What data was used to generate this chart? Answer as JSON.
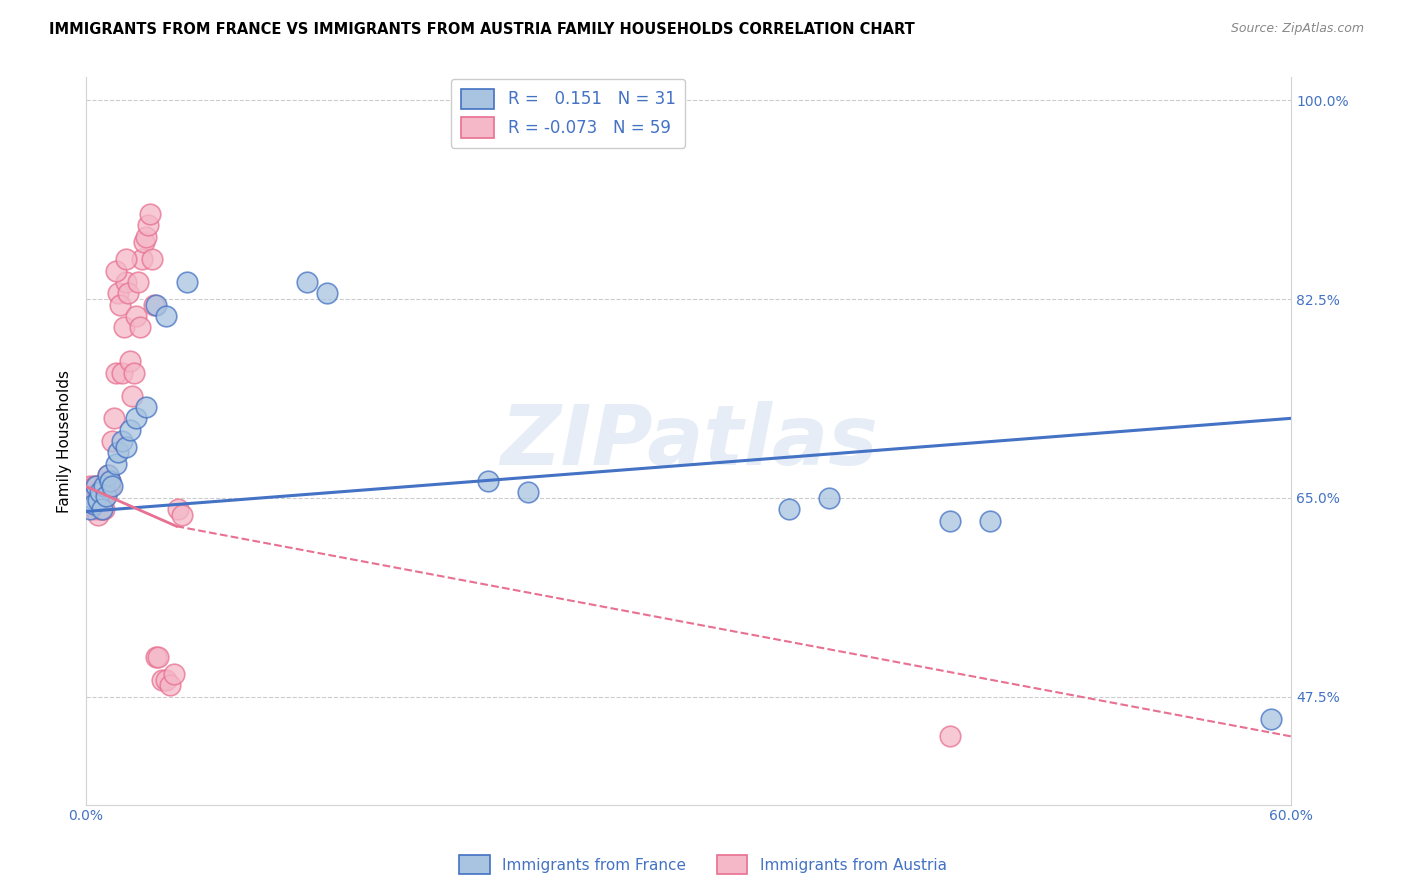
{
  "title": "IMMIGRANTS FROM FRANCE VS IMMIGRANTS FROM AUSTRIA FAMILY HOUSEHOLDS CORRELATION CHART",
  "source": "Source: ZipAtlas.com",
  "ylabel": "Family Households",
  "xlim": [
    0.0,
    0.6
  ],
  "ylim": [
    0.38,
    1.02
  ],
  "xticks": [
    0.0,
    0.1,
    0.2,
    0.3,
    0.4,
    0.5,
    0.6
  ],
  "xticklabels": [
    "0.0%",
    "",
    "",
    "",
    "",
    "",
    "60.0%"
  ],
  "yticks_right": [
    0.475,
    0.65,
    0.825,
    1.0
  ],
  "ytick_right_labels": [
    "47.5%",
    "65.0%",
    "82.5%",
    "100.0%"
  ],
  "france_R": 0.151,
  "france_N": 31,
  "austria_R": -0.073,
  "austria_N": 59,
  "france_color": "#a8c4e0",
  "austria_color": "#f4b8c8",
  "france_line_color": "#4472c4",
  "austria_line_color": "#e87090",
  "watermark": "ZIPatlas",
  "legend_label_france": "Immigrants from France",
  "legend_label_austria": "Immigrants from Austria",
  "france_x": [
    0.002,
    0.003,
    0.004,
    0.005,
    0.006,
    0.007,
    0.008,
    0.009,
    0.01,
    0.011,
    0.012,
    0.013,
    0.015,
    0.016,
    0.018,
    0.02,
    0.022,
    0.025,
    0.03,
    0.035,
    0.04,
    0.05,
    0.11,
    0.12,
    0.2,
    0.22,
    0.35,
    0.37,
    0.43,
    0.45,
    0.59
  ],
  "france_y": [
    0.64,
    0.65,
    0.645,
    0.66,
    0.648,
    0.655,
    0.64,
    0.66,
    0.652,
    0.67,
    0.665,
    0.66,
    0.68,
    0.69,
    0.7,
    0.695,
    0.71,
    0.72,
    0.73,
    0.82,
    0.81,
    0.84,
    0.84,
    0.83,
    0.665,
    0.655,
    0.64,
    0.65,
    0.63,
    0.63,
    0.455
  ],
  "austria_x": [
    0.002,
    0.002,
    0.003,
    0.003,
    0.004,
    0.004,
    0.005,
    0.005,
    0.005,
    0.006,
    0.006,
    0.006,
    0.007,
    0.007,
    0.007,
    0.008,
    0.008,
    0.008,
    0.009,
    0.009,
    0.01,
    0.01,
    0.011,
    0.011,
    0.012,
    0.012,
    0.013,
    0.014,
    0.015,
    0.016,
    0.017,
    0.018,
    0.019,
    0.02,
    0.021,
    0.022,
    0.023,
    0.024,
    0.025,
    0.026,
    0.027,
    0.028,
    0.029,
    0.03,
    0.031,
    0.032,
    0.033,
    0.034,
    0.035,
    0.036,
    0.038,
    0.04,
    0.042,
    0.044,
    0.046,
    0.048,
    0.015,
    0.02,
    0.43
  ],
  "austria_y": [
    0.65,
    0.66,
    0.645,
    0.655,
    0.64,
    0.66,
    0.64,
    0.65,
    0.66,
    0.635,
    0.645,
    0.655,
    0.64,
    0.65,
    0.655,
    0.64,
    0.65,
    0.655,
    0.64,
    0.65,
    0.655,
    0.665,
    0.66,
    0.67,
    0.66,
    0.665,
    0.7,
    0.72,
    0.76,
    0.83,
    0.82,
    0.76,
    0.8,
    0.84,
    0.83,
    0.77,
    0.74,
    0.76,
    0.81,
    0.84,
    0.8,
    0.86,
    0.875,
    0.88,
    0.89,
    0.9,
    0.86,
    0.82,
    0.51,
    0.51,
    0.49,
    0.49,
    0.485,
    0.495,
    0.64,
    0.635,
    0.85,
    0.86,
    0.44
  ]
}
